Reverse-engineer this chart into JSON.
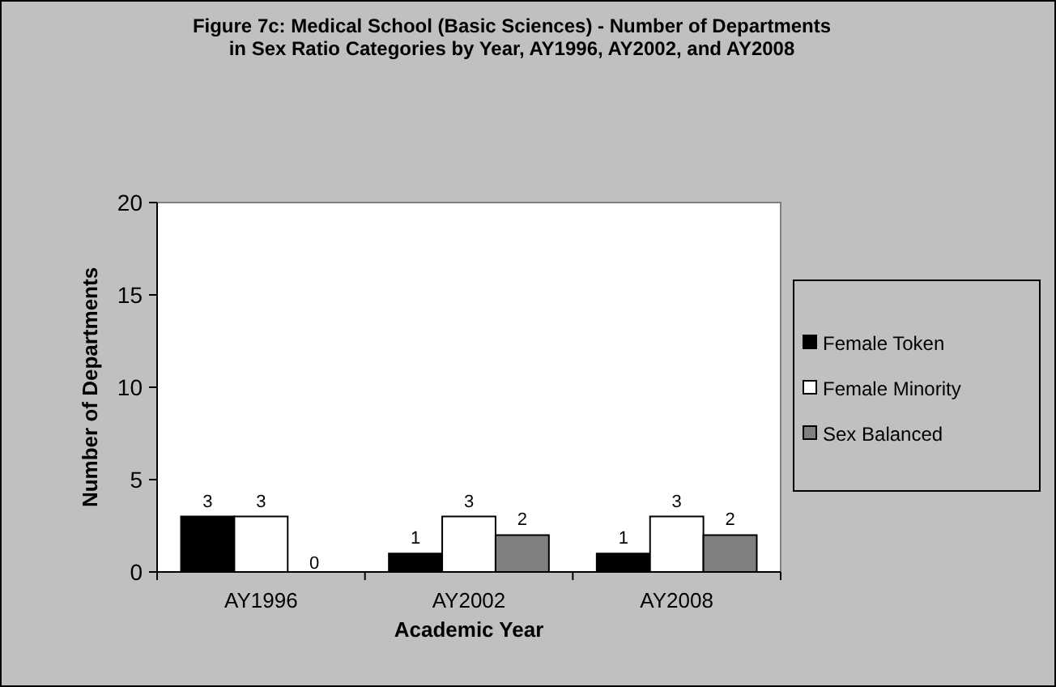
{
  "chart_data": {
    "type": "bar",
    "title": "Figure 7c: Medical School (Basic Sciences) - Number of Departments\nin Sex Ratio Categories by Year, AY1996, AY2002, and AY2008",
    "xlabel": "Academic Year",
    "ylabel": "Number of Departments",
    "categories": [
      "AY1996",
      "AY2002",
      "AY2008"
    ],
    "series": [
      {
        "name": "Female Token",
        "color": "#000000",
        "values": [
          3,
          1,
          1
        ]
      },
      {
        "name": "Female Minority",
        "color": "#ffffff",
        "values": [
          3,
          3,
          3
        ]
      },
      {
        "name": "Sex Balanced",
        "color": "#808080",
        "values": [
          0,
          2,
          2
        ]
      }
    ],
    "ylim": [
      0,
      20
    ],
    "yticks": [
      0,
      5,
      10,
      15,
      20
    ],
    "data_labels": true,
    "legend": "right",
    "grid": false
  }
}
